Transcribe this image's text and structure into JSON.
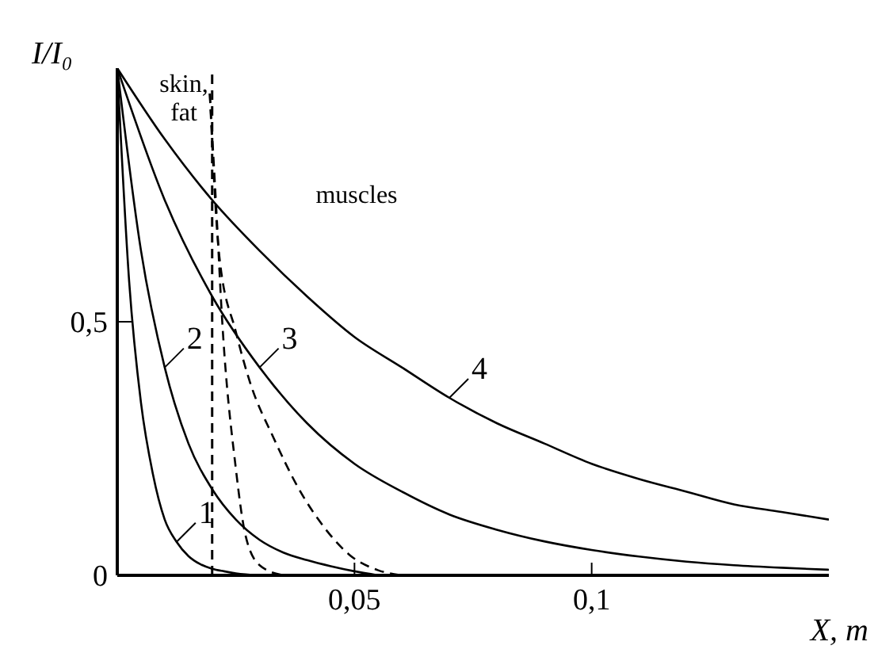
{
  "chart_data": {
    "type": "line",
    "xlabel": "X, m",
    "ylabel": "I/I₀",
    "xlim": [
      0,
      0.15
    ],
    "ylim": [
      0,
      1
    ],
    "xticks": [
      {
        "value": 0.05,
        "label": "0,05"
      },
      {
        "value": 0.1,
        "label": "0,1"
      }
    ],
    "yticks": [
      0,
      {
        "value": 0.5,
        "label": "0,5"
      }
    ],
    "annotations": [
      "skin, fat",
      "muscles"
    ],
    "legend": "bottom left",
    "ref_lines": [
      {
        "axis": "x",
        "value": 0.02,
        "line_style": "dashed",
        "color": "#000000"
      }
    ],
    "series": [
      {
        "name": "1",
        "color": "#000000",
        "x": [
          0,
          0.0025,
          0.005,
          0.0075,
          0.01,
          0.0125,
          0.015,
          0.0175,
          0.02,
          0.0225,
          0.025,
          0.03
        ],
        "values": [
          1,
          0.58,
          0.34,
          0.2,
          0.11,
          0.066,
          0.038,
          0.022,
          0.013,
          0.008,
          0.004,
          0
        ]
      },
      {
        "name": "2",
        "color": "#000000",
        "x": [
          0,
          0.005,
          0.01,
          0.015,
          0.02,
          0.025,
          0.03,
          0.035,
          0.04,
          0.045,
          0.05,
          0.055
        ],
        "values": [
          1,
          0.64,
          0.41,
          0.26,
          0.17,
          0.11,
          0.07,
          0.045,
          0.03,
          0.018,
          0.008,
          0
        ]
      },
      {
        "name": "3",
        "color": "#000000",
        "x": [
          0,
          0.01,
          0.02,
          0.03,
          0.04,
          0.05,
          0.06,
          0.07,
          0.08,
          0.09,
          0.1,
          0.11,
          0.12,
          0.13,
          0.14,
          0.15
        ],
        "values": [
          1,
          0.74,
          0.55,
          0.41,
          0.3,
          0.22,
          0.165,
          0.12,
          0.09,
          0.067,
          0.05,
          0.037,
          0.027,
          0.02,
          0.015,
          0.011
        ]
      },
      {
        "name": "4",
        "color": "#000000",
        "x": [
          0,
          0.01,
          0.02,
          0.03,
          0.04,
          0.05,
          0.06,
          0.07,
          0.08,
          0.09,
          0.1,
          0.11,
          0.12,
          0.13,
          0.14,
          0.15
        ],
        "values": [
          1,
          0.86,
          0.74,
          0.64,
          0.55,
          0.47,
          0.41,
          0.35,
          0.3,
          0.26,
          0.22,
          0.19,
          0.165,
          0.14,
          0.125,
          0.11
        ]
      },
      {
        "color": "#000000",
        "line_style": "dashed",
        "x": [
          0.0195,
          0.021,
          0.022,
          0.025,
          0.027,
          0.03,
          0.035
        ],
        "values": [
          0.95,
          0.7,
          0.52,
          0.21,
          0.08,
          0.02,
          0
        ]
      },
      {
        "color": "#000000",
        "line_style": "dashed",
        "x": [
          0.0195,
          0.0215,
          0.025,
          0.028,
          0.033,
          0.038,
          0.044,
          0.049,
          0.055,
          0.06
        ],
        "values": [
          0.95,
          0.63,
          0.48,
          0.38,
          0.27,
          0.175,
          0.09,
          0.04,
          0.01,
          0
        ]
      }
    ]
  }
}
